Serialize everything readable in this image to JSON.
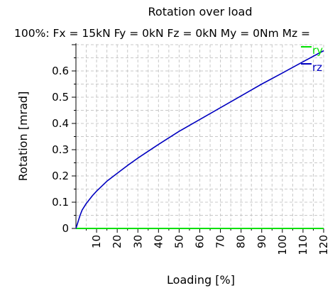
{
  "chart_data": {
    "type": "line",
    "title": "Rotation over load",
    "subtitle": "100%: Fx = 15kN Fy = 0kN Fz = 0kN My = 0Nm Mz =",
    "xlabel": "Loading [%]",
    "ylabel": "Rotation [mrad]",
    "xlim": [
      0,
      120
    ],
    "ylim": [
      0,
      0.7
    ],
    "x_ticks": [
      "10",
      "20",
      "30",
      "40",
      "50",
      "60",
      "70",
      "80",
      "90",
      "100",
      "110",
      "120"
    ],
    "y_ticks": [
      "0",
      "0.1",
      "0.2",
      "0.3",
      "0.4",
      "0.5",
      "0.6"
    ],
    "grid": true,
    "legend_position": "top-right",
    "series": [
      {
        "name": "ry",
        "color": "#00e000",
        "x": [
          0,
          10,
          20,
          30,
          40,
          50,
          60,
          70,
          80,
          90,
          100,
          110,
          120
        ],
        "y": [
          0,
          0,
          0,
          0,
          0,
          0,
          0,
          0,
          0,
          0,
          0,
          0,
          0
        ]
      },
      {
        "name": "rz",
        "color": "#0000c0",
        "x": [
          0,
          1,
          2,
          3,
          5,
          8,
          10,
          15,
          20,
          25,
          30,
          40,
          50,
          60,
          70,
          80,
          90,
          100,
          110,
          120
        ],
        "y": [
          0,
          0.025,
          0.05,
          0.07,
          0.095,
          0.125,
          0.142,
          0.18,
          0.21,
          0.24,
          0.268,
          0.32,
          0.37,
          0.415,
          0.46,
          0.505,
          0.55,
          0.592,
          0.635,
          0.677
        ]
      }
    ]
  }
}
